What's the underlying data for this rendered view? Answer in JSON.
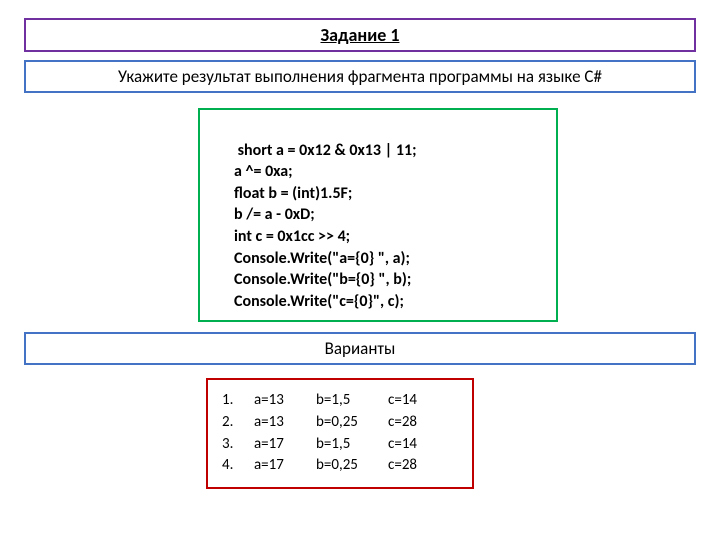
{
  "title": {
    "text": "Задание 1",
    "border_color": "#7030a0"
  },
  "prompt": {
    "text": "Укажите результат выполнения фрагмента программы на языке C#",
    "border_color": "#4472c4"
  },
  "code": {
    "lines": [
      " short a = 0x12 & 0x13 | 11;",
      "a ^= 0xa;",
      "float b = (int)1.5F;",
      "b /= a - 0xD;",
      "int c = 0x1cc >> 4;",
      "Console.Write(\"a={0} \", a);",
      "Console.Write(\"b={0} \", b);",
      "Console.Write(\"c={0}\", c);"
    ],
    "border_color": "#00b050"
  },
  "variants_label": {
    "text": "Варианты",
    "border_color": "#4472c4"
  },
  "answers": {
    "border_color": "#c00000",
    "rows": [
      {
        "num": "1.",
        "a": "a=13",
        "b": "b=1,5",
        "c": "c=14"
      },
      {
        "num": "2.",
        "a": "a=13",
        "b": "b=0,25",
        "c": "c=28"
      },
      {
        "num": "3.",
        "a": "a=17",
        "b": "b=1,5",
        "c": "c=14"
      },
      {
        "num": "4.",
        "a": "a=17",
        "b": "b=0,25",
        "c": "c=28"
      }
    ]
  }
}
